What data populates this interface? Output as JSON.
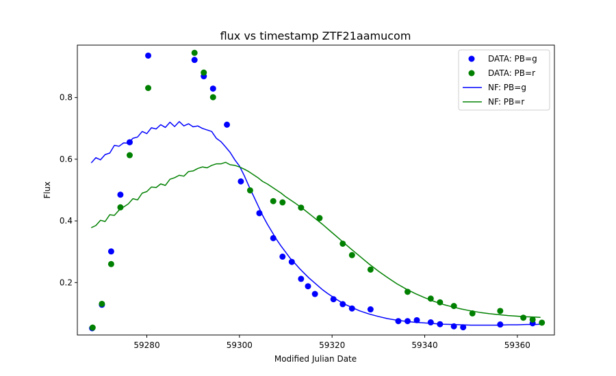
{
  "chart_data": {
    "type": "scatter",
    "title": "flux vs timestamp ZTF21aamucom",
    "xlabel": "Modified Julian Date",
    "ylabel": "Flux",
    "xlim": [
      59265,
      59368
    ],
    "ylim": [
      0.03,
      0.97
    ],
    "xticks": [
      59280,
      59300,
      59320,
      59340,
      59360
    ],
    "yticks": [
      0.2,
      0.4,
      0.6,
      0.8
    ],
    "xtick_labels": [
      "59280",
      "59300",
      "59320",
      "59340",
      "59360"
    ],
    "ytick_labels": [
      "0.2",
      "0.4",
      "0.6",
      "0.8"
    ],
    "grid": false,
    "legend_position": "top-right",
    "series": [
      {
        "name": "DATA: PB=g",
        "kind": "scatter",
        "color": "#0000ff",
        "points": [
          [
            59268.2,
            0.052
          ],
          [
            59270.3,
            0.128
          ],
          [
            59272.3,
            0.301
          ],
          [
            59274.3,
            0.485
          ],
          [
            59276.3,
            0.655
          ],
          [
            59280.3,
            0.936
          ],
          [
            59290.3,
            0.922
          ],
          [
            59292.3,
            0.869
          ],
          [
            59294.3,
            0.829
          ],
          [
            59297.3,
            0.712
          ],
          [
            59300.3,
            0.528
          ],
          [
            59304.3,
            0.425
          ],
          [
            59307.3,
            0.344
          ],
          [
            59309.3,
            0.284
          ],
          [
            59311.3,
            0.267
          ],
          [
            59313.3,
            0.212
          ],
          [
            59314.8,
            0.188
          ],
          [
            59316.3,
            0.163
          ],
          [
            59320.3,
            0.146
          ],
          [
            59322.3,
            0.13
          ],
          [
            59324.3,
            0.116
          ],
          [
            59328.3,
            0.113
          ],
          [
            59334.3,
            0.075
          ],
          [
            59336.3,
            0.075
          ],
          [
            59338.3,
            0.078
          ],
          [
            59341.3,
            0.071
          ],
          [
            59343.3,
            0.065
          ],
          [
            59346.3,
            0.058
          ],
          [
            59348.3,
            0.055
          ],
          [
            59356.3,
            0.064
          ],
          [
            59363.3,
            0.068
          ]
        ]
      },
      {
        "name": "DATA: PB=r",
        "kind": "scatter",
        "color": "#008000",
        "points": [
          [
            59268.3,
            0.054
          ],
          [
            59270.3,
            0.131
          ],
          [
            59272.3,
            0.26
          ],
          [
            59274.3,
            0.444
          ],
          [
            59276.3,
            0.613
          ],
          [
            59280.3,
            0.831
          ],
          [
            59290.3,
            0.945
          ],
          [
            59292.3,
            0.881
          ],
          [
            59294.3,
            0.801
          ],
          [
            59302.3,
            0.499
          ],
          [
            59307.3,
            0.464
          ],
          [
            59309.3,
            0.46
          ],
          [
            59313.3,
            0.443
          ],
          [
            59317.3,
            0.409
          ],
          [
            59322.3,
            0.326
          ],
          [
            59324.3,
            0.289
          ],
          [
            59328.3,
            0.242
          ],
          [
            59336.3,
            0.17
          ],
          [
            59341.3,
            0.148
          ],
          [
            59343.3,
            0.136
          ],
          [
            59346.3,
            0.124
          ],
          [
            59350.3,
            0.1
          ],
          [
            59356.3,
            0.108
          ],
          [
            59361.3,
            0.086
          ],
          [
            59363.3,
            0.08
          ],
          [
            59365.3,
            0.07
          ]
        ]
      },
      {
        "name": "NF: PB=g",
        "kind": "line",
        "color": "#0000ff",
        "points": [
          [
            59268,
            0.588
          ],
          [
            59269,
            0.605
          ],
          [
            59270,
            0.598
          ],
          [
            59271,
            0.615
          ],
          [
            59272,
            0.62
          ],
          [
            59273,
            0.645
          ],
          [
            59274,
            0.642
          ],
          [
            59275,
            0.653
          ],
          [
            59276,
            0.652
          ],
          [
            59277,
            0.668
          ],
          [
            59278,
            0.672
          ],
          [
            59279,
            0.69
          ],
          [
            59280,
            0.683
          ],
          [
            59281,
            0.702
          ],
          [
            59282,
            0.698
          ],
          [
            59283,
            0.712
          ],
          [
            59284,
            0.703
          ],
          [
            59285,
            0.72
          ],
          [
            59286,
            0.706
          ],
          [
            59287,
            0.722
          ],
          [
            59288,
            0.708
          ],
          [
            59289,
            0.715
          ],
          [
            59290,
            0.705
          ],
          [
            59291,
            0.708
          ],
          [
            59292,
            0.7
          ],
          [
            59293,
            0.695
          ],
          [
            59294,
            0.69
          ],
          [
            59295,
            0.668
          ],
          [
            59296,
            0.657
          ],
          [
            59297,
            0.64
          ],
          [
            59298,
            0.622
          ],
          [
            59299,
            0.598
          ],
          [
            59300,
            0.578
          ],
          [
            59301,
            0.548
          ],
          [
            59302,
            0.514
          ],
          [
            59303,
            0.482
          ],
          [
            59304,
            0.45
          ],
          [
            59305,
            0.418
          ],
          [
            59306,
            0.39
          ],
          [
            59307,
            0.365
          ],
          [
            59308,
            0.34
          ],
          [
            59309,
            0.318
          ],
          [
            59310,
            0.298
          ],
          [
            59311,
            0.278
          ],
          [
            59312,
            0.262
          ],
          [
            59313,
            0.245
          ],
          [
            59314,
            0.23
          ],
          [
            59315,
            0.215
          ],
          [
            59316,
            0.202
          ],
          [
            59317,
            0.189
          ],
          [
            59318,
            0.176
          ],
          [
            59319,
            0.165
          ],
          [
            59320,
            0.155
          ],
          [
            59321,
            0.145
          ],
          [
            59322,
            0.136
          ],
          [
            59323,
            0.128
          ],
          [
            59324,
            0.121
          ],
          [
            59326,
            0.108
          ],
          [
            59328,
            0.098
          ],
          [
            59330,
            0.09
          ],
          [
            59332,
            0.083
          ],
          [
            59334,
            0.078
          ],
          [
            59336,
            0.074
          ],
          [
            59338,
            0.071
          ],
          [
            59340,
            0.069
          ],
          [
            59342,
            0.067
          ],
          [
            59344,
            0.065
          ],
          [
            59346,
            0.064
          ],
          [
            59348,
            0.063
          ],
          [
            59350,
            0.062
          ],
          [
            59352,
            0.062
          ],
          [
            59354,
            0.062
          ],
          [
            59356,
            0.062
          ],
          [
            59358,
            0.063
          ],
          [
            59360,
            0.063
          ],
          [
            59362,
            0.064
          ],
          [
            59364,
            0.064
          ],
          [
            59365,
            0.065
          ]
        ]
      },
      {
        "name": "NF: PB=r",
        "kind": "line",
        "color": "#008000",
        "points": [
          [
            59268,
            0.378
          ],
          [
            59269,
            0.385
          ],
          [
            59270,
            0.402
          ],
          [
            59271,
            0.398
          ],
          [
            59272,
            0.42
          ],
          [
            59273,
            0.418
          ],
          [
            59274,
            0.435
          ],
          [
            59275,
            0.445
          ],
          [
            59276,
            0.455
          ],
          [
            59277,
            0.472
          ],
          [
            59278,
            0.468
          ],
          [
            59279,
            0.49
          ],
          [
            59280,
            0.495
          ],
          [
            59281,
            0.51
          ],
          [
            59282,
            0.508
          ],
          [
            59283,
            0.52
          ],
          [
            59284,
            0.515
          ],
          [
            59285,
            0.535
          ],
          [
            59286,
            0.54
          ],
          [
            59287,
            0.548
          ],
          [
            59288,
            0.545
          ],
          [
            59289,
            0.56
          ],
          [
            59290,
            0.562
          ],
          [
            59291,
            0.57
          ],
          [
            59292,
            0.575
          ],
          [
            59293,
            0.572
          ],
          [
            59294,
            0.58
          ],
          [
            59295,
            0.585
          ],
          [
            59296,
            0.585
          ],
          [
            59297,
            0.59
          ],
          [
            59298,
            0.582
          ],
          [
            59299,
            0.58
          ],
          [
            59300,
            0.575
          ],
          [
            59301,
            0.568
          ],
          [
            59302,
            0.56
          ],
          [
            59303,
            0.55
          ],
          [
            59304,
            0.54
          ],
          [
            59305,
            0.528
          ],
          [
            59306,
            0.52
          ],
          [
            59307,
            0.51
          ],
          [
            59308,
            0.5
          ],
          [
            59309,
            0.49
          ],
          [
            59310,
            0.478
          ],
          [
            59312,
            0.458
          ],
          [
            59314,
            0.436
          ],
          [
            59316,
            0.412
          ],
          [
            59318,
            0.388
          ],
          [
            59320,
            0.362
          ],
          [
            59322,
            0.336
          ],
          [
            59324,
            0.31
          ],
          [
            59326,
            0.285
          ],
          [
            59328,
            0.26
          ],
          [
            59330,
            0.237
          ],
          [
            59332,
            0.216
          ],
          [
            59334,
            0.196
          ],
          [
            59336,
            0.179
          ],
          [
            59338,
            0.164
          ],
          [
            59340,
            0.151
          ],
          [
            59342,
            0.139
          ],
          [
            59344,
            0.129
          ],
          [
            59346,
            0.121
          ],
          [
            59348,
            0.114
          ],
          [
            59350,
            0.108
          ],
          [
            59352,
            0.103
          ],
          [
            59354,
            0.099
          ],
          [
            59356,
            0.096
          ],
          [
            59358,
            0.093
          ],
          [
            59360,
            0.091
          ],
          [
            59362,
            0.089
          ],
          [
            59364,
            0.088
          ],
          [
            59365,
            0.087
          ]
        ]
      }
    ]
  }
}
